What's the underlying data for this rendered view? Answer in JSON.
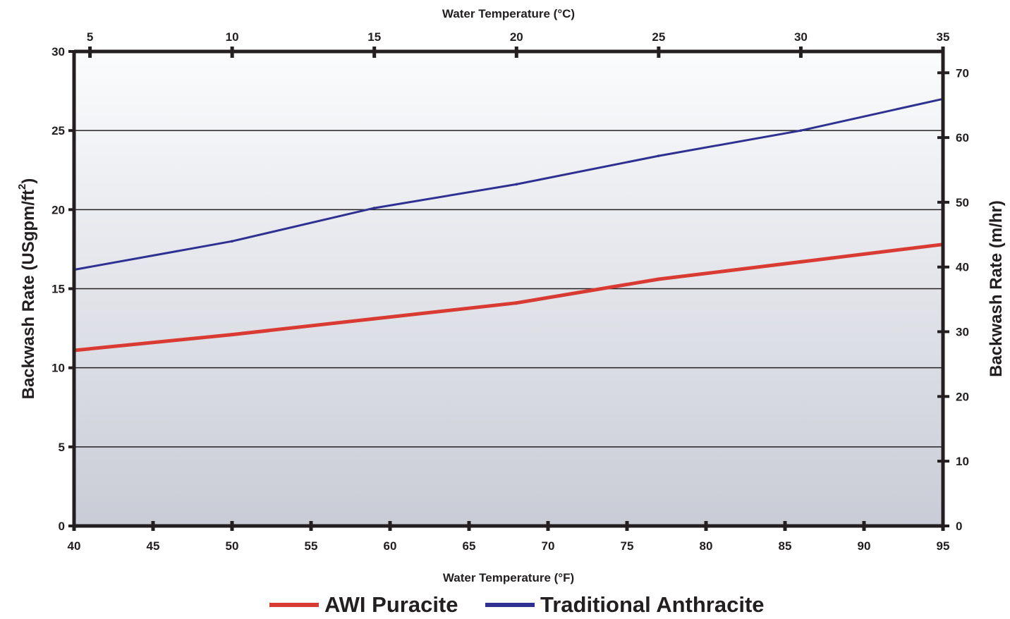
{
  "chart_data": {
    "type": "line",
    "x_bottom": {
      "label": "Water Temperature (°F)",
      "range": [
        40,
        95
      ],
      "ticks": [
        40,
        45,
        50,
        55,
        60,
        65,
        70,
        75,
        80,
        85,
        90,
        95
      ]
    },
    "x_top": {
      "label": "Water Temperature (°C)",
      "range": [
        4.44,
        35
      ],
      "ticks": [
        5,
        10,
        15,
        20,
        25,
        30,
        35
      ]
    },
    "y_left": {
      "label": "Backwash Rate (USgpm/ft²)",
      "label_main": "Backwash Rate (USgpm/ft",
      "label_sup": "2",
      "label_end": ")",
      "range": [
        0,
        30
      ],
      "ticks": [
        0,
        5,
        10,
        15,
        20,
        25,
        30
      ]
    },
    "y_right": {
      "label": "Backwash Rate (m/hr)",
      "range": [
        0,
        73.3
      ],
      "ticks": [
        0,
        10,
        20,
        30,
        40,
        50,
        60,
        70
      ]
    },
    "grid": "horizontal",
    "background": "vertical gradient, white to light gray-blue",
    "series": [
      {
        "name": "AWI Puracite",
        "color": "#d93a31",
        "points": [
          [
            40,
            11.1
          ],
          [
            50,
            12.1
          ],
          [
            59,
            13.1
          ],
          [
            68,
            14.1
          ],
          [
            77,
            15.6
          ],
          [
            86,
            16.7
          ],
          [
            95,
            17.8
          ]
        ]
      },
      {
        "name": "Traditional Anthracite",
        "color": "#2e3192",
        "points": [
          [
            40,
            16.2
          ],
          [
            50,
            18.0
          ],
          [
            59,
            20.1
          ],
          [
            68,
            21.6
          ],
          [
            77,
            23.4
          ],
          [
            86,
            25.0
          ],
          [
            95,
            27.0
          ]
        ]
      }
    ],
    "legend_placement": "bottom-center"
  }
}
